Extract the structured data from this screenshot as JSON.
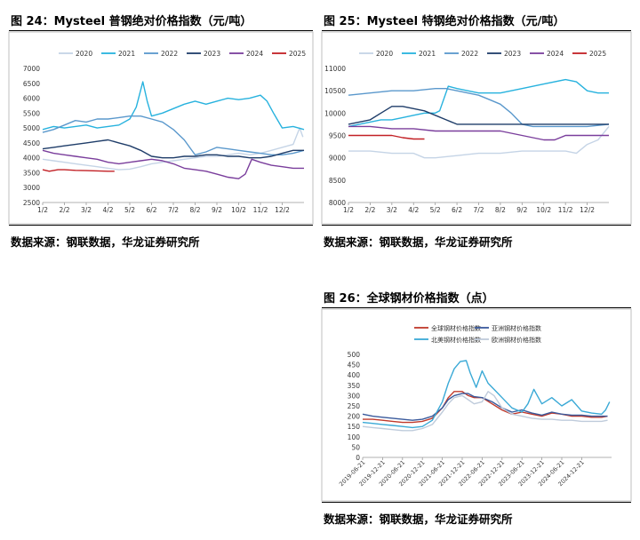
{
  "figures": {
    "f24": {
      "title": "图 24：Mysteel 普钢绝对价格指数（元/吨）",
      "source": "数据来源：钢联数据，华龙证券研究所"
    },
    "f25": {
      "title": "图 25：Mysteel 特钢绝对价格指数（元/吨）",
      "source": "数据来源：钢联数据，华龙证券研究所"
    },
    "f26": {
      "title": "图 26：全球钢材价格指数（点）",
      "source": "数据来源：钢联数据，华龙证券研究所"
    }
  },
  "colors": {
    "s2020": "#c5d4e6",
    "s2021": "#27b2de",
    "s2022": "#5a98cc",
    "s2023": "#1f3d69",
    "s2024": "#7a3e9c",
    "s2025": "#c22025",
    "global": "#c0392b",
    "asia": "#3a5a9c",
    "namerica": "#3aa9d6",
    "europe": "#bfcbdb"
  },
  "chart_data": [
    {
      "id": "c24",
      "type": "line",
      "title": "Mysteel 普钢绝对价格指数（元/吨）",
      "categories": [
        "1/2",
        "2/2",
        "3/2",
        "4/2",
        "5/2",
        "6/2",
        "7/2",
        "8/2",
        "9/2",
        "10/2",
        "11/2",
        "12/2"
      ],
      "ylim": [
        2500,
        7000
      ],
      "yticks": [
        2500,
        3000,
        3500,
        4000,
        4500,
        5000,
        5500,
        6000,
        6500,
        7000
      ],
      "legend_position": "top",
      "series": [
        {
          "name": "2020",
          "color_key": "s2020",
          "x": [
            0,
            0.5,
            1,
            1.5,
            2,
            2.5,
            3,
            3.5,
            4,
            4.5,
            5,
            5.5,
            6,
            6.5,
            7,
            7.5,
            8,
            8.5,
            9,
            9.5,
            10,
            10.5,
            11,
            11.5,
            11.8,
            11.95
          ],
          "values": [
            3950,
            3900,
            3850,
            3800,
            3750,
            3700,
            3650,
            3600,
            3620,
            3700,
            3800,
            3850,
            3900,
            3950,
            4000,
            4050,
            4050,
            4100,
            4150,
            4100,
            4150,
            4250,
            4350,
            4450,
            5000,
            4700
          ]
        },
        {
          "name": "2021",
          "color_key": "s2021",
          "x": [
            0,
            0.5,
            1,
            1.5,
            2,
            2.5,
            3,
            3.5,
            4,
            4.3,
            4.6,
            4.8,
            5,
            5.5,
            6,
            6.5,
            7,
            7.5,
            8,
            8.5,
            9,
            9.5,
            10,
            10.3,
            10.6,
            11,
            11.5,
            12
          ],
          "values": [
            4950,
            5050,
            5000,
            5050,
            5100,
            5000,
            5050,
            5100,
            5300,
            5700,
            6550,
            5900,
            5400,
            5500,
            5650,
            5800,
            5900,
            5800,
            5900,
            6000,
            5950,
            6000,
            6100,
            5900,
            5500,
            5000,
            5050,
            4950
          ]
        },
        {
          "name": "2022",
          "color_key": "s2022",
          "x": [
            0,
            0.5,
            1,
            1.5,
            2,
            2.5,
            3,
            3.5,
            4,
            4.5,
            5,
            5.5,
            6,
            6.5,
            6.8,
            7,
            7.5,
            8,
            8.5,
            9,
            9.5,
            10,
            10.5,
            11,
            11.5,
            12
          ],
          "values": [
            4850,
            4950,
            5100,
            5250,
            5200,
            5300,
            5300,
            5350,
            5400,
            5400,
            5300,
            5200,
            4950,
            4600,
            4300,
            4100,
            4200,
            4350,
            4300,
            4250,
            4200,
            4150,
            4100,
            4100,
            4150,
            4250
          ]
        },
        {
          "name": "2023",
          "color_key": "s2023",
          "x": [
            0,
            0.5,
            1,
            1.5,
            2,
            2.5,
            3,
            3.5,
            4,
            4.5,
            5,
            5.5,
            6,
            6.5,
            7,
            7.5,
            8,
            8.5,
            9,
            9.5,
            10,
            10.5,
            11,
            11.5,
            12
          ],
          "values": [
            4300,
            4350,
            4400,
            4450,
            4500,
            4550,
            4600,
            4500,
            4400,
            4250,
            4050,
            4000,
            4000,
            4050,
            4050,
            4100,
            4100,
            4050,
            4050,
            4000,
            4000,
            4050,
            4150,
            4250,
            4250
          ]
        },
        {
          "name": "2024",
          "color_key": "s2024",
          "x": [
            0,
            0.5,
            1,
            1.5,
            2,
            2.5,
            3,
            3.5,
            4,
            4.5,
            5,
            5.5,
            6,
            6.5,
            7,
            7.5,
            8,
            8.5,
            9,
            9.3,
            9.6,
            10,
            10.5,
            11,
            11.5,
            12
          ],
          "values": [
            4250,
            4150,
            4100,
            4050,
            4000,
            3950,
            3850,
            3800,
            3850,
            3900,
            3950,
            3900,
            3800,
            3650,
            3600,
            3550,
            3450,
            3350,
            3300,
            3450,
            3950,
            3850,
            3750,
            3700,
            3650,
            3650
          ]
        },
        {
          "name": "2025",
          "color_key": "s2025",
          "x": [
            0,
            0.3,
            0.7,
            1,
            1.5,
            2,
            2.5,
            3,
            3.3
          ],
          "values": [
            3600,
            3550,
            3600,
            3600,
            3580,
            3570,
            3560,
            3550,
            3550
          ]
        }
      ]
    },
    {
      "id": "c25",
      "type": "line",
      "title": "Mysteel 特钢绝对价格指数（元/吨）",
      "categories": [
        "1/2",
        "2/2",
        "3/2",
        "4/2",
        "5/2",
        "6/2",
        "7/2",
        "8/2",
        "9/2",
        "10/2",
        "11/2",
        "12/2"
      ],
      "ylim": [
        8000,
        11000
      ],
      "yticks": [
        8000,
        8500,
        9000,
        9500,
        10000,
        10500,
        11000
      ],
      "legend_position": "top",
      "series": [
        {
          "name": "2020",
          "color_key": "s2020",
          "x": [
            0,
            1,
            2,
            3,
            3.5,
            4,
            5,
            6,
            7,
            8,
            9,
            10,
            10.5,
            11,
            11.5,
            12
          ],
          "values": [
            9150,
            9150,
            9100,
            9100,
            9000,
            9000,
            9050,
            9100,
            9100,
            9150,
            9150,
            9150,
            9100,
            9300,
            9400,
            9700
          ]
        },
        {
          "name": "2021",
          "color_key": "s2021",
          "x": [
            0,
            0.5,
            1,
            1.5,
            2,
            2.5,
            3,
            3.5,
            4,
            4.2,
            4.6,
            5,
            6,
            7,
            8,
            9,
            10,
            10.5,
            11,
            11.5,
            12
          ],
          "values": [
            9700,
            9750,
            9800,
            9850,
            9850,
            9900,
            9950,
            10000,
            10000,
            10050,
            10600,
            10550,
            10450,
            10450,
            10550,
            10650,
            10750,
            10700,
            10500,
            10450,
            10450
          ]
        },
        {
          "name": "2022",
          "color_key": "s2022",
          "x": [
            0,
            1,
            2,
            3,
            4,
            4.5,
            5,
            5.5,
            6,
            6.5,
            7,
            7.5,
            8,
            8.5,
            9,
            10,
            11,
            12
          ],
          "values": [
            10400,
            10450,
            10500,
            10500,
            10550,
            10550,
            10500,
            10450,
            10400,
            10300,
            10200,
            10000,
            9750,
            9700,
            9700,
            9700,
            9700,
            9750
          ]
        },
        {
          "name": "2023",
          "color_key": "s2023",
          "x": [
            0,
            0.5,
            1,
            1.5,
            2,
            2.5,
            3,
            3.5,
            4,
            4.5,
            5,
            6,
            7,
            8,
            9,
            10,
            11,
            12
          ],
          "values": [
            9750,
            9800,
            9850,
            10000,
            10150,
            10150,
            10100,
            10050,
            9950,
            9850,
            9750,
            9750,
            9750,
            9750,
            9750,
            9750,
            9750,
            9750
          ]
        },
        {
          "name": "2024",
          "color_key": "s2024",
          "x": [
            0,
            1,
            2,
            3,
            4,
            5,
            6,
            7,
            8,
            8.5,
            9,
            9.5,
            10,
            10.5,
            11,
            12
          ],
          "values": [
            9700,
            9700,
            9650,
            9650,
            9600,
            9600,
            9600,
            9600,
            9500,
            9450,
            9400,
            9400,
            9500,
            9500,
            9500,
            9500
          ]
        },
        {
          "name": "2025",
          "color_key": "s2025",
          "x": [
            0,
            0.5,
            1,
            1.5,
            2,
            2.5,
            3,
            3.5
          ],
          "values": [
            9500,
            9500,
            9500,
            9500,
            9500,
            9450,
            9420,
            9420
          ]
        }
      ]
    },
    {
      "id": "c26",
      "type": "line",
      "title": "全球钢材价格指数（点）",
      "categories": [
        "2019-06-21",
        "2019-12-21",
        "2020-06-21",
        "2020-12-21",
        "2021-06-21",
        "2021-12-21",
        "2022-06-21",
        "2022-12-21",
        "2023-06-21",
        "2023-12-21",
        "2024-06-21",
        "2024-12-21"
      ],
      "ylim": [
        0,
        500
      ],
      "yticks": [
        0,
        50,
        100,
        150,
        200,
        250,
        300,
        350,
        400,
        450,
        500
      ],
      "legend_position": "top",
      "series": [
        {
          "name": "全球钢材价格指数",
          "color_key": "global",
          "x": [
            0,
            0.5,
            1,
            1.5,
            2,
            2.5,
            3,
            3.5,
            4,
            4.3,
            4.6,
            5,
            5.3,
            5.6,
            6,
            6.5,
            7,
            7.5,
            8,
            8.5,
            9,
            9.5,
            10,
            10.5,
            11,
            11.5,
            12,
            12.3
          ],
          "values": [
            185,
            185,
            180,
            175,
            170,
            170,
            175,
            190,
            240,
            290,
            320,
            320,
            300,
            290,
            290,
            260,
            230,
            210,
            220,
            210,
            200,
            215,
            210,
            200,
            200,
            195,
            195,
            200
          ]
        },
        {
          "name": "亚洲钢材价格指数",
          "color_key": "asia",
          "x": [
            0,
            0.5,
            1,
            1.5,
            2,
            2.5,
            3,
            3.5,
            4,
            4.3,
            4.6,
            5,
            5.3,
            5.6,
            6,
            6.5,
            7,
            7.5,
            8,
            8.5,
            9,
            9.5,
            10,
            10.5,
            11,
            11.5,
            12,
            12.3
          ],
          "values": [
            210,
            200,
            195,
            190,
            185,
            180,
            185,
            200,
            240,
            280,
            300,
            310,
            310,
            295,
            290,
            270,
            240,
            220,
            230,
            215,
            205,
            220,
            210,
            205,
            205,
            200,
            200,
            200
          ]
        },
        {
          "name": "北美钢材价格指数",
          "color_key": "namerica",
          "x": [
            0,
            0.5,
            1,
            1.5,
            2,
            2.5,
            3,
            3.5,
            4,
            4.3,
            4.6,
            4.9,
            5.2,
            5.4,
            5.7,
            6,
            6.3,
            6.6,
            7,
            7.5,
            8,
            8.3,
            8.6,
            9,
            9.5,
            10,
            10.5,
            11,
            11.5,
            12,
            12.2,
            12.4
          ],
          "values": [
            170,
            165,
            160,
            155,
            150,
            145,
            150,
            180,
            270,
            360,
            430,
            465,
            470,
            410,
            340,
            420,
            360,
            330,
            290,
            240,
            220,
            260,
            330,
            260,
            290,
            250,
            280,
            225,
            215,
            210,
            230,
            270
          ]
        },
        {
          "name": "欧洲钢材价格指数",
          "color_key": "europe",
          "x": [
            0,
            0.5,
            1,
            1.5,
            2,
            2.5,
            3,
            3.5,
            4,
            4.3,
            4.6,
            5,
            5.3,
            5.6,
            6,
            6.3,
            6.6,
            7,
            7.5,
            8,
            8.5,
            9,
            9.5,
            10,
            10.5,
            11,
            11.5,
            12,
            12.3
          ],
          "values": [
            150,
            145,
            140,
            135,
            130,
            130,
            140,
            160,
            220,
            260,
            290,
            300,
            280,
            260,
            270,
            320,
            300,
            240,
            210,
            200,
            190,
            185,
            185,
            180,
            180,
            175,
            175,
            175,
            180
          ]
        }
      ]
    }
  ]
}
